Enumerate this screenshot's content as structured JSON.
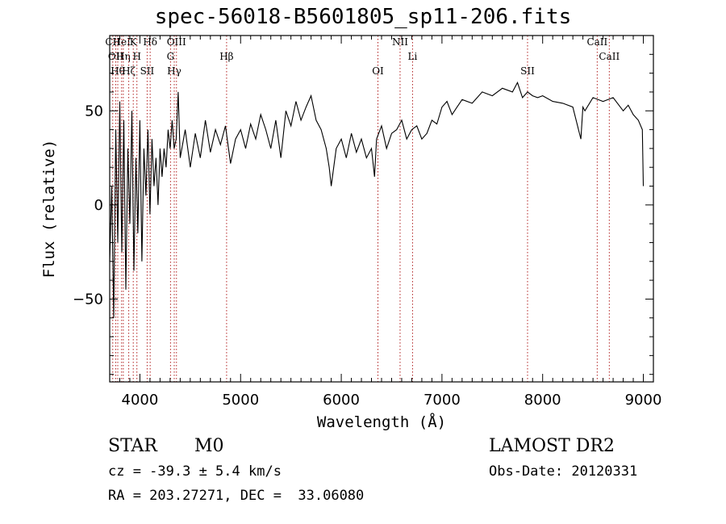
{
  "header": {
    "title": "spec-56018-B5601805_sp11-206.fits"
  },
  "footer": {
    "class_label": "STAR",
    "subclass_label": "M0",
    "survey": "LAMOST DR2",
    "cz": "cz = -39.3 ± 5.4 km/s",
    "obs_date": "Obs-Date: 20120331",
    "radec": "RA = 203.27271, DEC =  33.06080"
  },
  "chart_data": {
    "type": "line",
    "title": "spec-56018-B5601805_sp11-206.fits",
    "xlabel": "Wavelength (Å)",
    "ylabel": "Flux (relative)",
    "xlim": [
      3700,
      9100
    ],
    "ylim": [
      -94,
      90
    ],
    "xticks": [
      4000,
      5000,
      6000,
      7000,
      8000,
      9000
    ],
    "yticks": [
      -50,
      0,
      50
    ],
    "grid": false,
    "line_color": "#000000",
    "marker_color": "#b22222",
    "series": [
      {
        "x": [
          3700,
          3720,
          3740,
          3760,
          3780,
          3800,
          3820,
          3840,
          3860,
          3880,
          3900,
          3920,
          3940,
          3960,
          3980,
          4000,
          4020,
          4040,
          4060,
          4080,
          4100,
          4120,
          4140,
          4160,
          4180,
          4200,
          4220,
          4240,
          4260,
          4280,
          4300,
          4320,
          4340,
          4360,
          4380,
          4400,
          4450,
          4500,
          4550,
          4600,
          4650,
          4700,
          4750,
          4800,
          4850,
          4900,
          4950,
          5000,
          5050,
          5100,
          5150,
          5200,
          5250,
          5300,
          5350,
          5400,
          5450,
          5500,
          5550,
          5600,
          5650,
          5700,
          5750,
          5800,
          5850,
          5880,
          5900,
          5950,
          6000,
          6050,
          6100,
          6150,
          6200,
          6250,
          6300,
          6330,
          6350,
          6400,
          6450,
          6500,
          6550,
          6600,
          6650,
          6700,
          6750,
          6800,
          6850,
          6900,
          6950,
          7000,
          7050,
          7100,
          7150,
          7200,
          7300,
          7400,
          7500,
          7600,
          7700,
          7750,
          7800,
          7850,
          7900,
          7950,
          8000,
          8100,
          8200,
          8300,
          8380,
          8400,
          8420,
          8500,
          8600,
          8700,
          8800,
          8850,
          8900,
          8950,
          8990,
          9000
        ],
        "y": [
          -30,
          10,
          -60,
          40,
          -20,
          55,
          -25,
          45,
          -45,
          30,
          -10,
          50,
          -35,
          25,
          -15,
          45,
          -30,
          30,
          5,
          40,
          -5,
          35,
          10,
          25,
          0,
          30,
          15,
          30,
          20,
          40,
          30,
          45,
          30,
          35,
          60,
          25,
          40,
          20,
          38,
          25,
          45,
          28,
          40,
          32,
          42,
          22,
          35,
          40,
          30,
          43,
          35,
          48,
          40,
          30,
          45,
          25,
          50,
          42,
          55,
          45,
          52,
          58,
          45,
          40,
          30,
          20,
          10,
          30,
          35,
          25,
          38,
          28,
          35,
          25,
          30,
          15,
          35,
          42,
          30,
          38,
          40,
          45,
          35,
          40,
          42,
          35,
          38,
          45,
          43,
          52,
          55,
          48,
          52,
          56,
          54,
          60,
          58,
          62,
          60,
          65,
          57,
          60,
          58,
          57,
          58,
          55,
          54,
          52,
          35,
          52,
          50,
          57,
          55,
          57,
          50,
          53,
          48,
          45,
          40,
          10
        ]
      }
    ],
    "line_markers": [
      {
        "x": 3730,
        "label": "CII"
      },
      {
        "x": 3760,
        "label": "OII"
      },
      {
        "x": 3780,
        "label": "Hθ"
      },
      {
        "x": 3818,
        "label": "HeI"
      },
      {
        "x": 3835,
        "label": "Hη"
      },
      {
        "x": 3889,
        "label": "Hζ"
      },
      {
        "x": 3934,
        "label": "K"
      },
      {
        "x": 3970,
        "label": "H"
      },
      {
        "x": 4072,
        "label": "SII"
      },
      {
        "x": 4102,
        "label": "Hδ"
      },
      {
        "x": 4304,
        "label": "G"
      },
      {
        "x": 4341,
        "label": "Hγ"
      },
      {
        "x": 4363,
        "label": "OIII"
      },
      {
        "x": 4861,
        "label": "Hβ"
      },
      {
        "x": 6364,
        "label": "OI"
      },
      {
        "x": 6584,
        "label": "NII"
      },
      {
        "x": 6708,
        "label": "Li"
      },
      {
        "x": 7850,
        "label": "SII"
      },
      {
        "x": 8542,
        "label": "CaII"
      },
      {
        "x": 8662,
        "label": "CaII"
      }
    ]
  }
}
